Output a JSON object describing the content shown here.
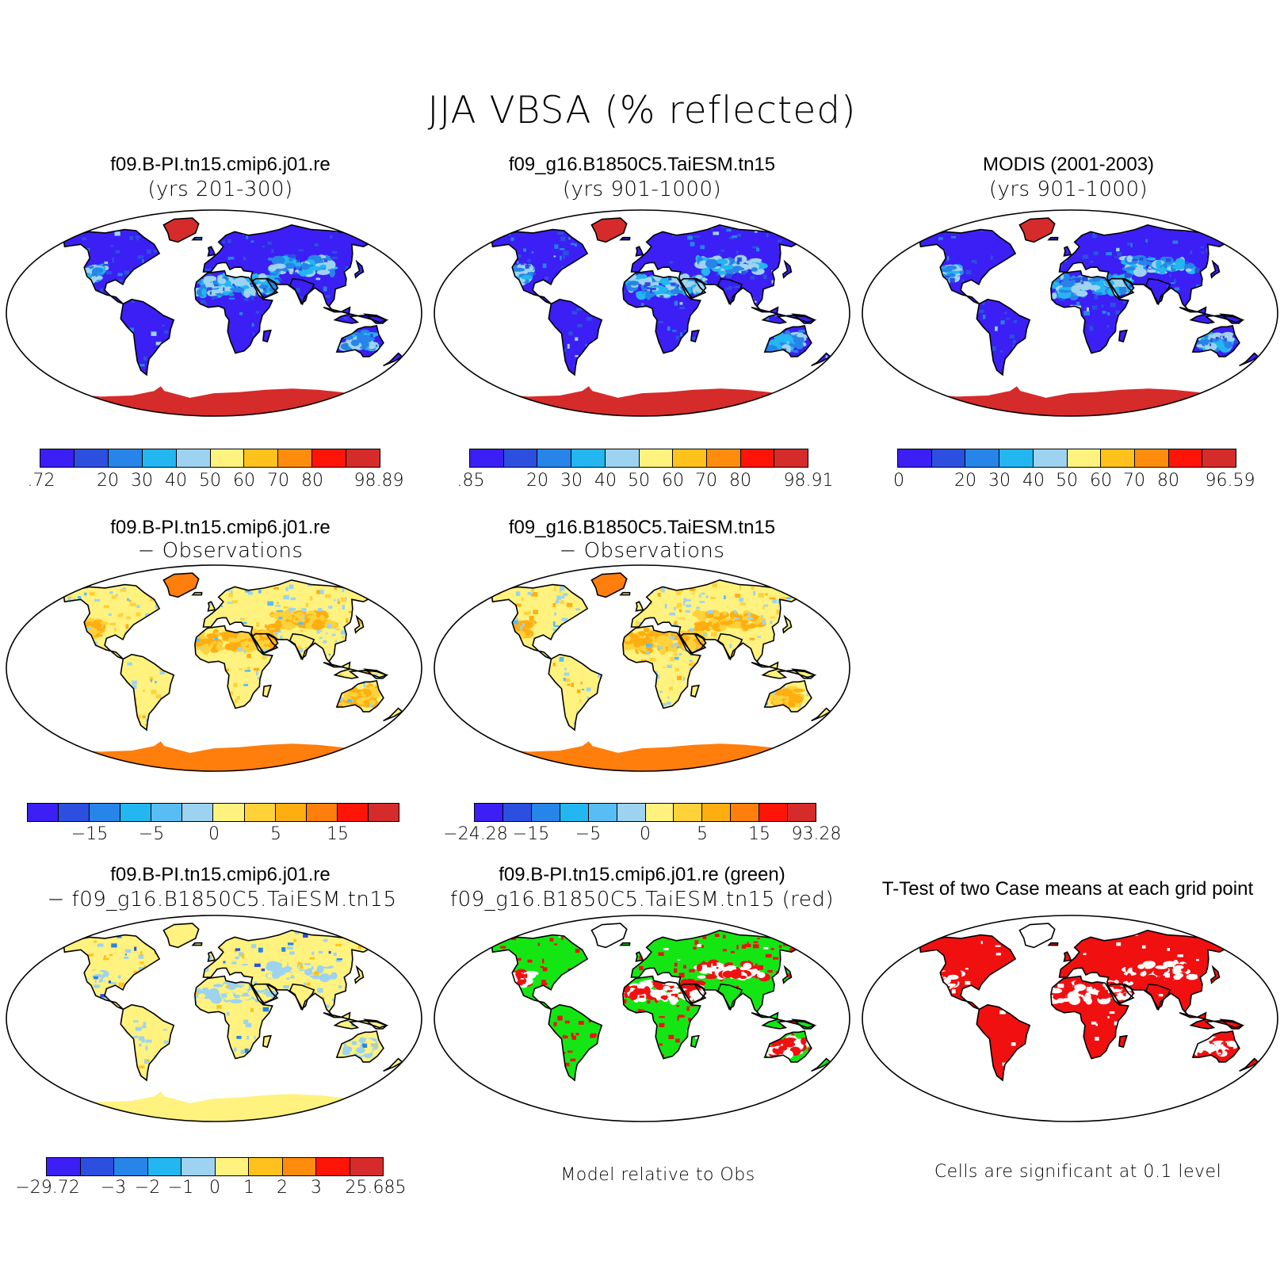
{
  "title": "JJA VBSA (% reflected)",
  "colors": {
    "palette10": [
      "#3b1ff5",
      "#2c4fe0",
      "#2784e8",
      "#23b6f0",
      "#9dd3f0",
      "#fff27e",
      "#ffc21c",
      "#ff8c0c",
      "#ff1508",
      "#d62b2b"
    ],
    "palette12": [
      "#3b1ff5",
      "#2c4fe0",
      "#2784e8",
      "#23b6f0",
      "#59bdf5",
      "#9dd3f0",
      "#fff27e",
      "#ffd23a",
      "#ffae12",
      "#ff7e0c",
      "#ff1508",
      "#d62b2b"
    ],
    "map_ocean": "#ffffff",
    "coast": "#000000"
  },
  "panels": [
    {
      "id": "p1",
      "title1": "f09.B-PI.tn15.cmip6.j01.re",
      "title2": "(yrs 201-300)",
      "style": "abs",
      "colorbar": {
        "palette": "palette10",
        "ticks": [
          ".72",
          "20",
          "30",
          "40",
          "50",
          "60",
          "70",
          "80",
          "98.89"
        ]
      }
    },
    {
      "id": "p2",
      "title1": "f09_g16.B1850C5.TaiESM.tn15",
      "title2": "(yrs 901-1000)",
      "style": "abs",
      "colorbar": {
        "palette": "palette10",
        "ticks": [
          ".85",
          "20",
          "30",
          "40",
          "50",
          "60",
          "70",
          "80",
          "98.91"
        ]
      }
    },
    {
      "id": "p3",
      "title1": "MODIS (2001-2003)",
      "title2": "(yrs 901-1000)",
      "style": "abs",
      "colorbar": {
        "palette": "palette10",
        "ticks": [
          "0",
          "20",
          "30",
          "40",
          "50",
          "60",
          "70",
          "80",
          "96.59"
        ]
      }
    },
    {
      "id": "p4",
      "title1": "f09.B-PI.tn15.cmip6.j01.re",
      "title2": "− Observations",
      "style": "diff",
      "colorbar": {
        "palette": "palette12",
        "ticks": [
          "−15",
          "−5",
          "0",
          "5",
          "15"
        ]
      }
    },
    {
      "id": "p5",
      "title1": "f09_g16.B1850C5.TaiESM.tn15",
      "title2": "− Observations",
      "style": "diff",
      "colorbar": {
        "palette": "palette12",
        "ticks": [
          "−24.28",
          "−15",
          "−5",
          "0",
          "5",
          "15",
          "93.28"
        ]
      }
    },
    {
      "id": "p6",
      "title1": "f09.B-PI.tn15.cmip6.j01.re",
      "title2": "− f09_g16.B1850C5.TaiESM.tn15",
      "style": "cdiff",
      "colorbar": {
        "palette": "palette10",
        "ticks": [
          "−29.72",
          "−3",
          "−2",
          "−1",
          "0",
          "1",
          "2",
          "3",
          "25.685"
        ]
      }
    },
    {
      "id": "p7",
      "title1": "f09.B-PI.tn15.cmip6.j01.re (green)",
      "title2": "f09_g16.B1850C5.TaiESM.tn15 (red)",
      "style": "rg",
      "note": "Model relative to Obs"
    },
    {
      "id": "p8",
      "title1": "T-Test of two Case means at each grid point",
      "title2": "",
      "style": "ttest",
      "note": "Cells are significant at 0.1 level"
    }
  ],
  "chart_data": [
    {
      "type": "heatmap",
      "title": "f09.B-PI.tn15.cmip6.j01.re (yrs 201-300)",
      "color_levels": [
        ".72",
        "20",
        "30",
        "40",
        "50",
        "60",
        "70",
        "80",
        "98.89"
      ],
      "range": [
        0.72,
        98.89
      ]
    },
    {
      "type": "heatmap",
      "title": "f09_g16.B1850C5.TaiESM.tn15 (yrs 901-1000)",
      "color_levels": [
        ".85",
        "20",
        "30",
        "40",
        "50",
        "60",
        "70",
        "80",
        "98.91"
      ],
      "range": [
        0.85,
        98.91
      ]
    },
    {
      "type": "heatmap",
      "title": "MODIS (2001-2003) (yrs 901-1000)",
      "color_levels": [
        "0",
        "20",
        "30",
        "40",
        "50",
        "60",
        "70",
        "80",
        "96.59"
      ],
      "range": [
        0,
        96.59
      ]
    },
    {
      "type": "heatmap",
      "title": "f09.B-PI.tn15.cmip6.j01.re − Observations",
      "color_levels": [
        "−15",
        "−5",
        "0",
        "5",
        "15"
      ]
    },
    {
      "type": "heatmap",
      "title": "f09_g16.B1850C5.TaiESM.tn15 − Observations",
      "color_levels": [
        "−24.28",
        "−15",
        "−5",
        "0",
        "5",
        "15",
        "93.28"
      ],
      "range": [
        -24.28,
        93.28
      ]
    },
    {
      "type": "heatmap",
      "title": "f09.B-PI.tn15.cmip6.j01.re − f09_g16.B1850C5.TaiESM.tn15",
      "color_levels": [
        "−29.72",
        "−3",
        "−2",
        "−1",
        "0",
        "1",
        "2",
        "3",
        "25.685"
      ],
      "range": [
        -29.72,
        25.685
      ]
    },
    {
      "type": "heatmap",
      "title": "f09.B-PI.tn15.cmip6.j01.re (green) f09_g16.B1850C5.TaiESM.tn15 (red)",
      "legend": [
        "green",
        "red"
      ]
    },
    {
      "type": "heatmap",
      "title": "T-Test of two Case means at each grid point",
      "legend": [
        "red"
      ]
    }
  ]
}
